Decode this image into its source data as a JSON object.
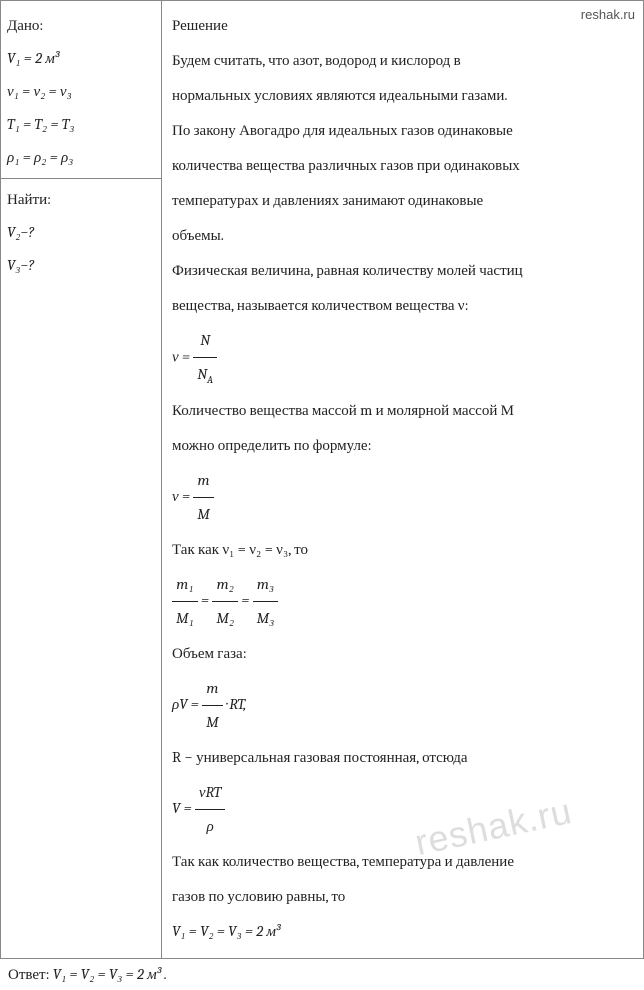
{
  "site": "reshak.ru",
  "watermark": "reshak.ru",
  "left": {
    "dano_label": "Дано:",
    "given": [
      "V₁ = 2 м³",
      "ν₁ = ν₂ = ν₃",
      "T₁ = T₂ = T₃",
      "ρ₁ = ρ₂ = ρ₃"
    ],
    "find_label": "Найти:",
    "find": [
      "V₂−?",
      "V₃−?"
    ]
  },
  "right": {
    "title": "Решение",
    "p1": "Будем считать, что азот, водород и кислород в",
    "p2": "нормальных условиях являются идеальными газами.",
    "p3": "По закону Авогадро для идеальных газов одинаковые",
    "p4": "количества вещества различных газов при одинаковых",
    "p5": "температурах и давлениях занимают одинаковые",
    "p6": "объемы.",
    "p7": "Физическая величина, равная количеству молей частиц",
    "p8": "вещества, называется количеством вещества ν:",
    "f1_num": "N",
    "f1_den": "N_A",
    "p9": "Количество вещества массой m и молярной массой М",
    "p10": "можно определить по формуле:",
    "f2_num": "m",
    "f2_den": "M",
    "p11": "Так как ν₁ = ν₂ = ν₃, то",
    "f3a_num": "m₁",
    "f3a_den": "M₁",
    "f3b_num": "m₂",
    "f3b_den": "M₂",
    "f3c_num": "m₃",
    "f3c_den": "M₃",
    "p12": "Объем газа:",
    "f4_lhs": "ρV = ",
    "f4_num": "m",
    "f4_den": "M",
    "f4_rhs": " · RT,",
    "p13": "R − универсальная газовая постоянная, отсюда",
    "f5_lhs": "V = ",
    "f5_num": "νRT",
    "f5_den": "ρ",
    "p14": "Так как количество вещества, температура и давление",
    "p15": "газов по условию равны, то",
    "f6": "V₁ = V₂ = V₃ = 2 м³"
  },
  "answer": {
    "label": "Ответ:  ",
    "value": "V₁ = V₂ = V₃ = 2 м³ ."
  }
}
